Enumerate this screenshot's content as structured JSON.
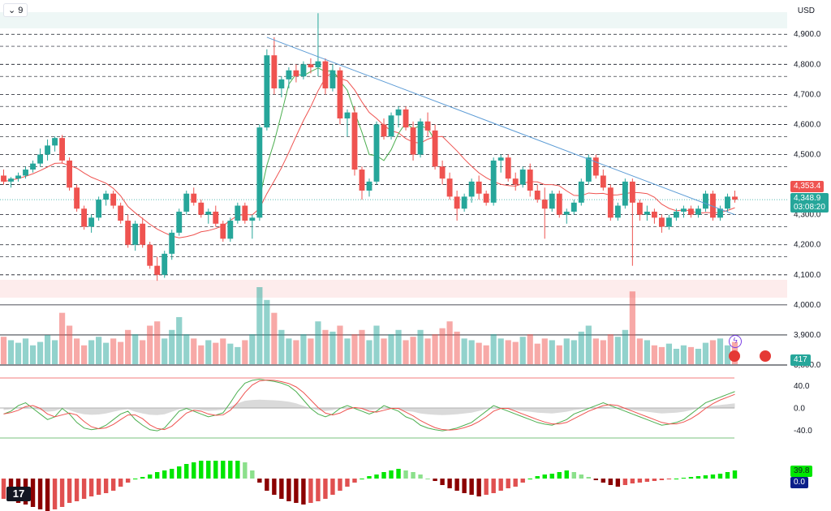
{
  "header": {
    "interval_label": "9",
    "currency": "USD"
  },
  "price_axis": {
    "ticks": [
      "4,900.0",
      "4,800.0",
      "4,700.0",
      "4,600.0",
      "4,500.0",
      "4,400.0",
      "4,300.0",
      "4,200.0",
      "4,100.0",
      "4,000.0",
      "3,900.0",
      "3,800.0"
    ],
    "tick_values": [
      4900,
      4800,
      4700,
      4600,
      4500,
      4400,
      4300,
      4200,
      4100,
      4000,
      3900,
      3800
    ],
    "ylim": [
      3800,
      4960
    ]
  },
  "tags": {
    "high_price": "4,353.4",
    "last_price": "4,348.9",
    "countdown": "03:08:20",
    "volume": "417",
    "oscillator_value": "39.8",
    "oscillator_zero": "0.0"
  },
  "colors": {
    "up": "#26a69a",
    "down": "#ef5350",
    "trendline": "#5b9bd5",
    "ma": "#ef5350",
    "ma_green": "#4caf50",
    "osc_up": "#00e600",
    "osc_down": "#b22222"
  },
  "stoch_axis": {
    "ticks": [
      "40.0",
      "0.0",
      "-40.0"
    ],
    "tick_values": [
      40,
      0,
      -40
    ]
  },
  "chart_data": {
    "type": "candlestick",
    "candles": [
      [
        4430,
        4450,
        4400,
        4410
      ],
      [
        4410,
        4425,
        4390,
        4420
      ],
      [
        4420,
        4440,
        4410,
        4430
      ],
      [
        4430,
        4460,
        4420,
        4450
      ],
      [
        4450,
        4480,
        4440,
        4470
      ],
      [
        4470,
        4520,
        4460,
        4500
      ],
      [
        4500,
        4550,
        4480,
        4530
      ],
      [
        4530,
        4560,
        4510,
        4555
      ],
      [
        4555,
        4565,
        4470,
        4480
      ],
      [
        4480,
        4490,
        4380,
        4390
      ],
      [
        4390,
        4400,
        4310,
        4320
      ],
      [
        4320,
        4330,
        4250,
        4260
      ],
      [
        4260,
        4300,
        4240,
        4290
      ],
      [
        4290,
        4360,
        4280,
        4350
      ],
      [
        4350,
        4380,
        4330,
        4370
      ],
      [
        4370,
        4380,
        4320,
        4330
      ],
      [
        4330,
        4340,
        4270,
        4280
      ],
      [
        4280,
        4300,
        4190,
        4200
      ],
      [
        4200,
        4280,
        4180,
        4270
      ],
      [
        4270,
        4290,
        4190,
        4200
      ],
      [
        4200,
        4210,
        4120,
        4130
      ],
      [
        4130,
        4160,
        4080,
        4100
      ],
      [
        4100,
        4180,
        4090,
        4170
      ],
      [
        4170,
        4250,
        4150,
        4240
      ],
      [
        4240,
        4320,
        4230,
        4310
      ],
      [
        4310,
        4380,
        4300,
        4370
      ],
      [
        4370,
        4390,
        4330,
        4340
      ],
      [
        4340,
        4350,
        4290,
        4300
      ],
      [
        4300,
        4320,
        4270,
        4310
      ],
      [
        4310,
        4330,
        4260,
        4270
      ],
      [
        4270,
        4280,
        4210,
        4220
      ],
      [
        4220,
        4290,
        4210,
        4280
      ],
      [
        4280,
        4340,
        4270,
        4330
      ],
      [
        4330,
        4340,
        4270,
        4280
      ],
      [
        4280,
        4300,
        4220,
        4290
      ],
      [
        4290,
        4600,
        4280,
        4590
      ],
      [
        4590,
        4850,
        4580,
        4830
      ],
      [
        4830,
        4890,
        4700,
        4720
      ],
      [
        4720,
        4760,
        4690,
        4750
      ],
      [
        4750,
        4790,
        4720,
        4780
      ],
      [
        4780,
        4800,
        4740,
        4760
      ],
      [
        4760,
        4810,
        4750,
        4800
      ],
      [
        4800,
        4820,
        4770,
        4790
      ],
      [
        4790,
        4970,
        4760,
        4810
      ],
      [
        4810,
        4820,
        4700,
        4720
      ],
      [
        4720,
        4800,
        4710,
        4780
      ],
      [
        4780,
        4790,
        4600,
        4620
      ],
      [
        4620,
        4650,
        4560,
        4640
      ],
      [
        4640,
        4660,
        4430,
        4450
      ],
      [
        4450,
        4460,
        4350,
        4380
      ],
      [
        4380,
        4420,
        4360,
        4410
      ],
      [
        4410,
        4610,
        4400,
        4600
      ],
      [
        4600,
        4620,
        4550,
        4560
      ],
      [
        4560,
        4640,
        4550,
        4630
      ],
      [
        4630,
        4660,
        4590,
        4650
      ],
      [
        4650,
        4660,
        4580,
        4590
      ],
      [
        4590,
        4610,
        4480,
        4500
      ],
      [
        4500,
        4620,
        4490,
        4610
      ],
      [
        4610,
        4640,
        4560,
        4580
      ],
      [
        4580,
        4600,
        4450,
        4460
      ],
      [
        4460,
        4480,
        4400,
        4420
      ],
      [
        4420,
        4440,
        4350,
        4360
      ],
      [
        4360,
        4380,
        4280,
        4320
      ],
      [
        4320,
        4370,
        4310,
        4360
      ],
      [
        4360,
        4420,
        4340,
        4410
      ],
      [
        4410,
        4430,
        4350,
        4370
      ],
      [
        4370,
        4380,
        4330,
        4340
      ],
      [
        4340,
        4490,
        4330,
        4480
      ],
      [
        4480,
        4500,
        4440,
        4490
      ],
      [
        4490,
        4500,
        4410,
        4420
      ],
      [
        4420,
        4440,
        4380,
        4400
      ],
      [
        4400,
        4460,
        4390,
        4450
      ],
      [
        4450,
        4470,
        4360,
        4380
      ],
      [
        4380,
        4400,
        4340,
        4350
      ],
      [
        4350,
        4390,
        4220,
        4320
      ],
      [
        4320,
        4380,
        4310,
        4370
      ],
      [
        4370,
        4380,
        4290,
        4300
      ],
      [
        4300,
        4320,
        4270,
        4310
      ],
      [
        4310,
        4350,
        4300,
        4340
      ],
      [
        4340,
        4420,
        4330,
        4410
      ],
      [
        4410,
        4500,
        4400,
        4490
      ],
      [
        4490,
        4500,
        4420,
        4430
      ],
      [
        4430,
        4450,
        4380,
        4390
      ],
      [
        4390,
        4400,
        4280,
        4290
      ],
      [
        4290,
        4340,
        4280,
        4330
      ],
      [
        4330,
        4420,
        4320,
        4410
      ],
      [
        4410,
        4420,
        4130,
        4340
      ],
      [
        4340,
        4350,
        4280,
        4300
      ],
      [
        4300,
        4330,
        4280,
        4310
      ],
      [
        4310,
        4320,
        4270,
        4290
      ],
      [
        4290,
        4300,
        4240,
        4260
      ],
      [
        4260,
        4300,
        4250,
        4290
      ],
      [
        4290,
        4320,
        4280,
        4310
      ],
      [
        4310,
        4330,
        4290,
        4320
      ],
      [
        4320,
        4330,
        4290,
        4300
      ],
      [
        4300,
        4330,
        4290,
        4320
      ],
      [
        4320,
        4380,
        4310,
        4370
      ],
      [
        4370,
        4380,
        4280,
        4290
      ],
      [
        4290,
        4330,
        4280,
        4320
      ],
      [
        4320,
        4370,
        4310,
        4360
      ],
      [
        4360,
        4380,
        4340,
        4350
      ]
    ],
    "volume": [
      32,
      28,
      25,
      30,
      22,
      26,
      34,
      28,
      60,
      45,
      30,
      22,
      28,
      32,
      25,
      30,
      26,
      40,
      35,
      28,
      45,
      50,
      30,
      40,
      55,
      35,
      30,
      22,
      28,
      25,
      30,
      24,
      20,
      28,
      35,
      90,
      75,
      60,
      40,
      30,
      28,
      35,
      30,
      50,
      40,
      38,
      45,
      30,
      35,
      40,
      28,
      45,
      30,
      35,
      40,
      28,
      32,
      40,
      30,
      35,
      42,
      50,
      38,
      30,
      28,
      25,
      22,
      35,
      30,
      28,
      26,
      32,
      35,
      24,
      30,
      28,
      22,
      30,
      28,
      38,
      45,
      30,
      28,
      35,
      32,
      40,
      85,
      30,
      28,
      22,
      20,
      24,
      18,
      22,
      20,
      18,
      25,
      28,
      30,
      22,
      26
    ],
    "stoch_k": [
      -10,
      -5,
      5,
      10,
      0,
      -10,
      -20,
      -15,
      0,
      -10,
      -25,
      -35,
      -38,
      -36,
      -30,
      -20,
      -10,
      -5,
      -20,
      -30,
      -38,
      -40,
      -35,
      -20,
      -5,
      0,
      -5,
      -10,
      -15,
      -12,
      -8,
      10,
      30,
      45,
      50,
      52,
      50,
      48,
      45,
      40,
      30,
      15,
      0,
      -10,
      -15,
      -10,
      0,
      5,
      0,
      -5,
      -10,
      -5,
      5,
      0,
      -5,
      -15,
      -20,
      -30,
      -35,
      -38,
      -40,
      -38,
      -35,
      -30,
      -25,
      -15,
      -5,
      5,
      0,
      -5,
      -10,
      -15,
      -20,
      -25,
      -28,
      -30,
      -25,
      -20,
      -10,
      -5,
      0,
      5,
      10,
      5,
      0,
      -5,
      -10,
      -15,
      -20,
      -25,
      -30,
      -28,
      -25,
      -20,
      -10,
      0,
      10,
      15,
      20,
      25,
      30
    ],
    "oscillator": [
      -25,
      -28,
      -30,
      -32,
      -35,
      -38,
      -40,
      -38,
      -35,
      -30,
      -28,
      -25,
      -22,
      -20,
      -18,
      -15,
      -10,
      -5,
      0,
      2,
      5,
      8,
      10,
      12,
      15,
      18,
      20,
      22,
      22,
      22,
      22,
      22,
      22,
      20,
      10,
      -5,
      -15,
      -20,
      -25,
      -28,
      -30,
      -32,
      -30,
      -28,
      -25,
      -20,
      -15,
      -10,
      -5,
      0,
      3,
      5,
      8,
      10,
      12,
      10,
      8,
      5,
      0,
      -3,
      -8,
      -12,
      -15,
      -18,
      -20,
      -22,
      -20,
      -18,
      -15,
      -12,
      -10,
      -5,
      0,
      3,
      5,
      6,
      8,
      10,
      8,
      5,
      2,
      -2,
      -5,
      -8,
      -10,
      -8,
      -6,
      -5,
      -4,
      -3,
      -2,
      -1,
      0,
      1,
      2,
      3,
      4,
      5,
      6,
      8,
      10
    ],
    "trendline": {
      "start_index": 36,
      "start_price": 4890,
      "end_index": 100,
      "end_price": 4300
    }
  }
}
